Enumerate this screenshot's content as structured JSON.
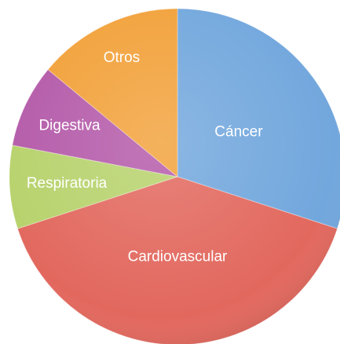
{
  "chart_data": {
    "type": "pie",
    "categories": [
      "Cáncer",
      "Cardiovascular",
      "Respiratoria",
      "Digestiva",
      "Otros"
    ],
    "values": [
      30,
      40,
      8,
      8,
      14
    ],
    "colors": [
      "#72a7dd",
      "#e2685e",
      "#b7d26c",
      "#b45aa9",
      "#f2a13a"
    ]
  }
}
